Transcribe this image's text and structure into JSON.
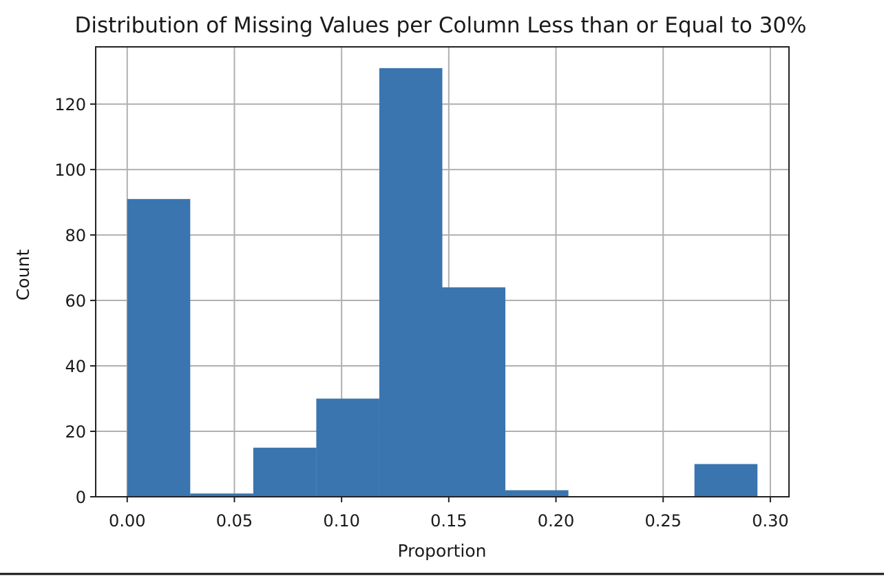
{
  "chart_data": {
    "type": "bar",
    "title": "Distribution of Missing Values per Column Less than or Equal to 30%",
    "xlabel": "Proportion",
    "ylabel": "Count",
    "xlim": [
      -0.0147,
      0.3087
    ],
    "ylim": [
      0,
      137.5
    ],
    "x_ticks": [
      0.0,
      0.05,
      0.1,
      0.15,
      0.2,
      0.25,
      0.3
    ],
    "x_tick_labels": [
      "0.00",
      "0.05",
      "0.10",
      "0.15",
      "0.20",
      "0.25",
      "0.30"
    ],
    "y_ticks": [
      0,
      20,
      40,
      60,
      80,
      100,
      120
    ],
    "y_tick_labels": [
      "0",
      "20",
      "40",
      "60",
      "80",
      "100",
      "120"
    ],
    "bin_edges": [
      0.0,
      0.0294,
      0.0588,
      0.0882,
      0.1176,
      0.147,
      0.1764,
      0.2058,
      0.2352,
      0.2646,
      0.294
    ],
    "values": [
      91,
      1,
      15,
      30,
      131,
      64,
      2,
      0,
      0,
      10
    ],
    "bar_color": "#3a75af",
    "grid": true
  }
}
